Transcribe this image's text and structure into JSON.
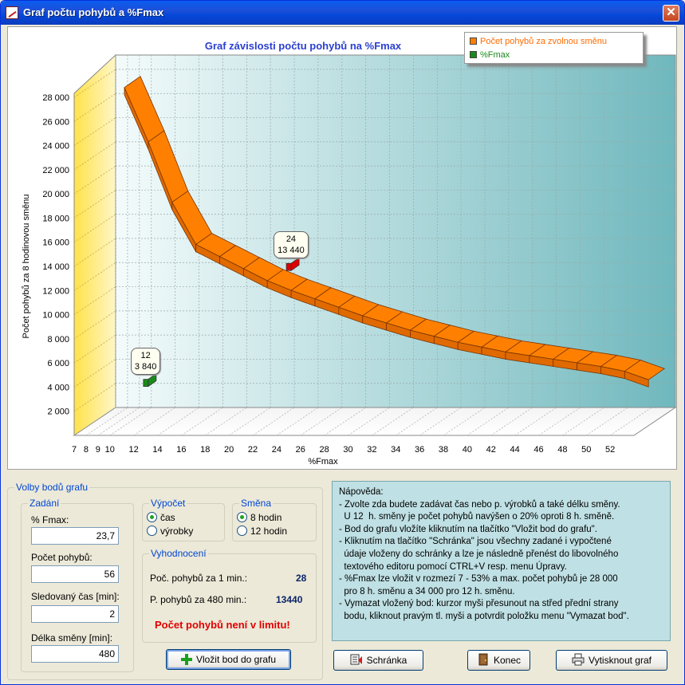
{
  "window": {
    "title": "Graf počtu pohybů a %Fmax",
    "close_label": "✕"
  },
  "chart_data": {
    "type": "area",
    "title": "Graf závislosti počtu pohybů na %Fmax",
    "xlabel": "%Fmax",
    "ylabel": "Počet pohybů za 8 hodinovou směnu",
    "ylim": [
      0,
      28000
    ],
    "xlim": [
      7,
      54
    ],
    "yticks": [
      2000,
      4000,
      6000,
      8000,
      10000,
      12000,
      14000,
      16000,
      18000,
      20000,
      22000,
      24000,
      26000,
      28000
    ],
    "ytick_labels": [
      "2 000",
      "4 000",
      "6 000",
      "8 000",
      "10 000",
      "12 000",
      "14 000",
      "16 000",
      "18 000",
      "20 000",
      "22 000",
      "24 000",
      "26 000",
      "28 000"
    ],
    "xticks": [
      7,
      8,
      9,
      10,
      12,
      14,
      16,
      18,
      20,
      22,
      24,
      26,
      28,
      30,
      32,
      34,
      36,
      38,
      40,
      42,
      44,
      46,
      48,
      50,
      52
    ],
    "grid": true,
    "legend_position": "top-right",
    "series": [
      {
        "name": "Počet pohybů za zvolnou směnu",
        "color": "#ff8000",
        "x": [
          10,
          12,
          14,
          16,
          18,
          20,
          22,
          24,
          26,
          28,
          30,
          32,
          34,
          36,
          38,
          40,
          42,
          44,
          46,
          48,
          50,
          52,
          54
        ],
        "y": [
          28000,
          23500,
          18500,
          15000,
          14000,
          13000,
          12000,
          11200,
          10500,
          9800,
          9100,
          8500,
          7900,
          7400,
          6900,
          6500,
          6100,
          5800,
          5500,
          5200,
          4900,
          4500,
          3800
        ]
      },
      {
        "name": "%Fmax",
        "color": "#1a8a1a",
        "points": [
          {
            "x": 12,
            "y": 3840,
            "label_x": "12",
            "label_y": "3 840",
            "color": "#1a8a1a"
          },
          {
            "x": 24,
            "y": 13440,
            "label_x": "24",
            "label_y": "13 440",
            "color": "#e00000"
          }
        ]
      }
    ]
  },
  "options": {
    "group_title": "Volby bodů grafu",
    "input_group": "Zadání",
    "fmax_label": "% Fmax:",
    "fmax_value": "23,7",
    "count_label": "Počet pohybů:",
    "count_value": "56",
    "time_label": "Sledovaný čas [min]:",
    "time_value": "2",
    "shift_len_label": "Délka směny [min]:",
    "shift_len_value": "480",
    "calc_group": "Výpočet",
    "calc_time": "čas",
    "calc_products": "výrobky",
    "shift_group": "Směna",
    "shift_8": "8  hodin",
    "shift_12": "12 hodin",
    "eval_group": "Vyhodnocení",
    "per_min_label": "Poč. pohybů za 1 min.:",
    "per_min_value": "28",
    "per_480_label": "P. pohybů za 480 min.:",
    "per_480_value": "13440",
    "warning": "Počet pohybů není v limitu!",
    "insert_button": "Vložit bod do grafu"
  },
  "help": {
    "text": "Nápověda:\n- Zvolte zda budete zadávat čas nebo p. výrobků a také délku směny.\n  U 12  h. směny je počet pohybů navýšen o 20% oproti 8 h. směně.\n- Bod do grafu vložíte kliknutím na tlačítko \"Vložit bod do grafu\".\n- Kliknutím na tlačítko \"Schránka\" jsou všechny zadané i vypočtené\n  údaje vloženy do schránky a lze je následně přenést do libovolného\n  textového editoru pomocí CTRL+V resp. menu Úpravy.\n- %Fmax lze vložit v rozmezí 7 - 53% a max. počet pohybů je 28 000\n  pro 8 h. směnu a 34 000 pro 12 h. směnu.\n- Vymazat vložený bod: kurzor myši přesunout na střed přední strany\n  bodu, kliknout pravým tl. myši a potvrdit položku menu \"Vymazat bod\"."
  },
  "buttons": {
    "clipboard": "Schránka",
    "end": "Konec",
    "print": "Vytisknout graf"
  }
}
